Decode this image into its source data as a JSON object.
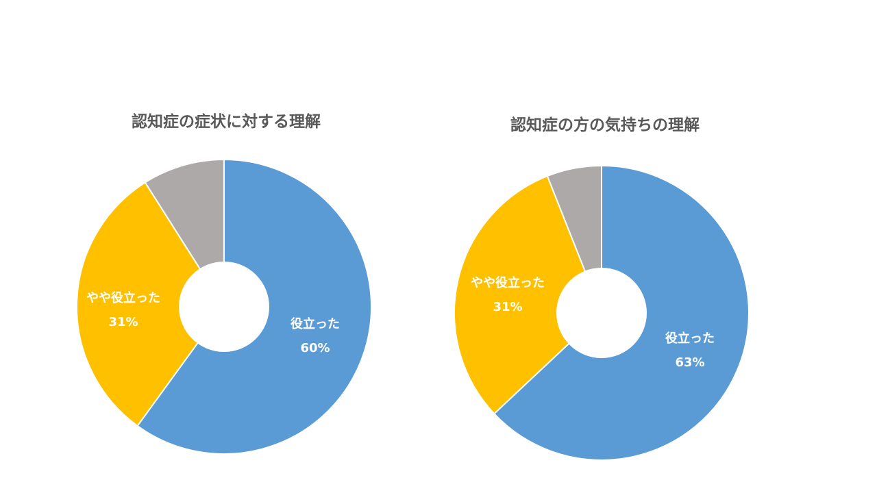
{
  "chart_data": [
    {
      "type": "pie",
      "title": "認知症の症状に対する理解",
      "categories": [
        "役立った",
        "やや役立った",
        ""
      ],
      "values": [
        60,
        31,
        9
      ],
      "data_labels": [
        {
          "name": "役立った",
          "value": "60%"
        },
        {
          "name": "やや役立った",
          "value": "31%"
        },
        null
      ],
      "colors": [
        "#5B9BD5",
        "#FFC000",
        "#ADA9A9"
      ],
      "hole": true,
      "legend": "none"
    },
    {
      "type": "pie",
      "title": "認知症の方の気持ちの理解",
      "categories": [
        "役立った",
        "やや役立った",
        ""
      ],
      "values": [
        63,
        31,
        6
      ],
      "data_labels": [
        {
          "name": "役立った",
          "value": "63%"
        },
        {
          "name": "やや役立った",
          "value": "31%"
        },
        null
      ],
      "colors": [
        "#5B9BD5",
        "#FFC000",
        "#ADA9A9"
      ],
      "hole": true,
      "legend": "none"
    }
  ]
}
